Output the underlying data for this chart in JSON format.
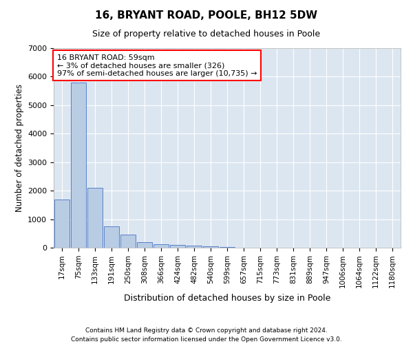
{
  "title": "16, BRYANT ROAD, POOLE, BH12 5DW",
  "subtitle": "Size of property relative to detached houses in Poole",
  "xlabel": "Distribution of detached houses by size in Poole",
  "ylabel": "Number of detached properties",
  "bar_color": "#b8cce4",
  "bar_edge_color": "#4472c4",
  "background_color": "#dce6f1",
  "categories": [
    "17sqm",
    "75sqm",
    "133sqm",
    "191sqm",
    "250sqm",
    "308sqm",
    "366sqm",
    "424sqm",
    "482sqm",
    "540sqm",
    "599sqm",
    "657sqm",
    "715sqm",
    "773sqm",
    "831sqm",
    "889sqm",
    "947sqm",
    "1006sqm",
    "1064sqm",
    "1122sqm",
    "1180sqm"
  ],
  "values": [
    1700,
    5800,
    2100,
    750,
    450,
    200,
    130,
    100,
    80,
    55,
    30,
    10,
    5,
    0,
    0,
    0,
    0,
    0,
    0,
    0,
    0
  ],
  "annotation_text": "16 BRYANT ROAD: 59sqm\n← 3% of detached houses are smaller (326)\n97% of semi-detached houses are larger (10,735) →",
  "annotation_box_color": "white",
  "annotation_border_color": "red",
  "ylim": [
    0,
    7000
  ],
  "yticks": [
    0,
    1000,
    2000,
    3000,
    4000,
    5000,
    6000,
    7000
  ],
  "footer_line1": "Contains HM Land Registry data © Crown copyright and database right 2024.",
  "footer_line2": "Contains public sector information licensed under the Open Government Licence v3.0."
}
